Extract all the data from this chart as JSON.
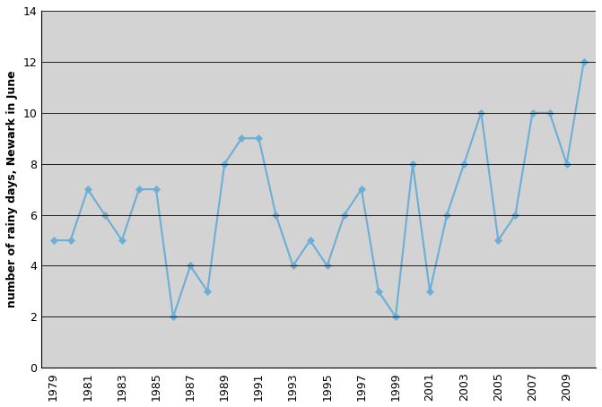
{
  "years": [
    1979,
    1980,
    1981,
    1982,
    1983,
    1984,
    1985,
    1986,
    1987,
    1988,
    1989,
    1990,
    1991,
    1992,
    1993,
    1994,
    1995,
    1996,
    1997,
    1998,
    1999,
    2000,
    2001,
    2002,
    2003,
    2004,
    2005,
    2006,
    2007,
    2008,
    2009,
    2010
  ],
  "values": [
    5,
    5,
    7,
    6,
    5,
    7,
    7,
    2,
    4,
    3,
    8,
    9,
    9,
    6,
    4,
    5,
    4,
    6,
    7,
    3,
    2,
    8,
    3,
    6,
    8,
    10,
    5,
    6,
    10,
    10,
    8,
    12
  ],
  "line_color": "#6baed6",
  "marker_color": "#6baed6",
  "background_color": "#d3d3d3",
  "plot_bg_color": "#d3d3d3",
  "fig_bg_color": "#ffffff",
  "ylabel": "number of rainy days, Newark in June",
  "ylim": [
    0,
    14
  ],
  "yticks": [
    0,
    2,
    4,
    6,
    8,
    10,
    12,
    14
  ],
  "xtick_years": [
    1979,
    1981,
    1983,
    1985,
    1987,
    1989,
    1991,
    1993,
    1995,
    1997,
    1999,
    2001,
    2003,
    2005,
    2007,
    2009
  ],
  "grid_color": "#555555",
  "marker": "D",
  "marker_size": 4,
  "line_width": 1.5,
  "xlim_left": 1978.3,
  "xlim_right": 2010.7
}
